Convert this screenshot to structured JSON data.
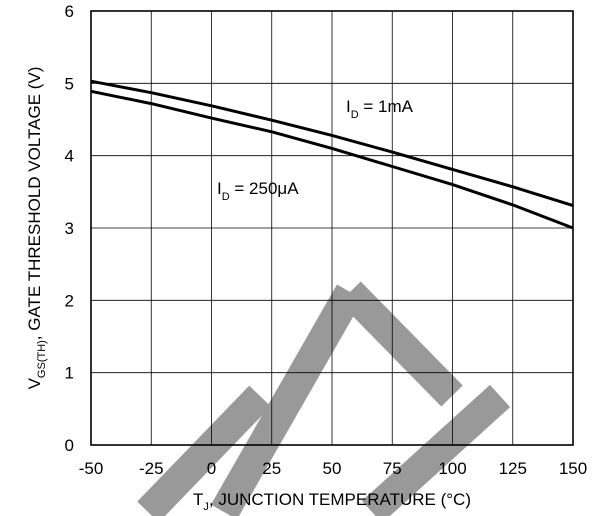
{
  "chart_data": {
    "type": "line",
    "xlabel": {
      "main": "T",
      "sub": "J",
      "rest": ", JUNCTION TEMPERATURE (°C)"
    },
    "ylabel": {
      "main": "V",
      "sub": "GS(TH)",
      "rest": ",  GATE THRESHOLD VOLTAGE (V)"
    },
    "xlim": [
      -50,
      150
    ],
    "ylim": [
      0,
      6
    ],
    "xticks": [
      "-50",
      "-25",
      "0",
      "25",
      "50",
      "75",
      "100",
      "125",
      "150"
    ],
    "xtick_values": [
      -50,
      -25,
      0,
      25,
      50,
      75,
      100,
      125,
      150
    ],
    "yticks": [
      "0",
      "1",
      "2",
      "3",
      "4",
      "5",
      "6"
    ],
    "ytick_values": [
      0,
      1,
      2,
      3,
      4,
      5,
      6
    ],
    "grid": true,
    "series": [
      {
        "x": [
          -50,
          -25,
          0,
          25,
          50,
          75,
          100,
          125,
          150
        ],
        "y": [
          5.03,
          4.87,
          4.69,
          4.49,
          4.28,
          4.05,
          3.81,
          3.57,
          3.31
        ],
        "annotation": {
          "main": "I",
          "sub": "D",
          "rest": " = 1mA"
        }
      },
      {
        "x": [
          -50,
          -25,
          0,
          25,
          50,
          75,
          100,
          125,
          150
        ],
        "y": [
          4.89,
          4.72,
          4.52,
          4.33,
          4.1,
          3.85,
          3.6,
          3.32,
          3.0
        ],
        "annotation": {
          "main": "I",
          "sub": "D",
          "rest": " = 250μA"
        }
      }
    ],
    "line_color": "#000000",
    "grid_color": "#000000",
    "watermark_color": "#999999"
  }
}
